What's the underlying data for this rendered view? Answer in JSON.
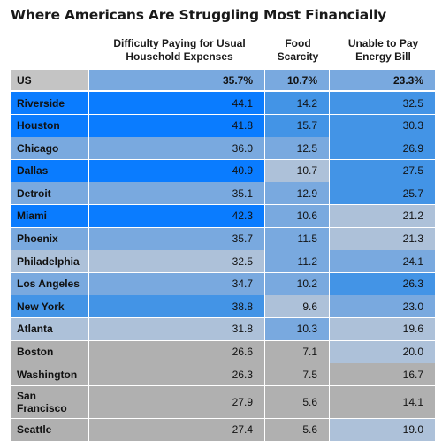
{
  "title": "Where Americans Are Struggling Most Financially",
  "colors": {
    "dark": "#0a7cff",
    "medium": "#4394e6",
    "light": "#79a9df",
    "pale": "#adc1d9",
    "grey": "#b0b0b0",
    "us_label": "#c4c4c4"
  },
  "chart_data": {
    "type": "table",
    "title": "Where Americans Are Struggling Most Financially",
    "columns": [
      "Difficulty Paying for Usual Household Expenses",
      "Food Scarcity",
      "Unable to Pay Energy Bill"
    ],
    "column_lines": [
      [
        "Difficulty Paying for Usual",
        "Household Expenses"
      ],
      [
        "Food",
        "Scarcity"
      ],
      [
        "Unable to Pay",
        "Energy Bill"
      ]
    ],
    "rows": [
      {
        "name": "US",
        "lines": [
          "US"
        ],
        "values": [
          "35.7%",
          "10.7%",
          "23.3%"
        ],
        "shades": [
          "light",
          "light",
          "light"
        ]
      },
      {
        "name": "Riverside",
        "lines": [
          "Riverside"
        ],
        "values": [
          "44.1",
          "14.2",
          "32.5"
        ],
        "shades": [
          "dark",
          "medium",
          "medium"
        ]
      },
      {
        "name": "Houston",
        "lines": [
          "Houston"
        ],
        "values": [
          "41.8",
          "15.7",
          "30.3"
        ],
        "shades": [
          "dark",
          "medium",
          "medium"
        ]
      },
      {
        "name": "Chicago",
        "lines": [
          "Chicago"
        ],
        "values": [
          "36.0",
          "12.5",
          "26.9"
        ],
        "shades": [
          "light",
          "light",
          "medium"
        ]
      },
      {
        "name": "Dallas",
        "lines": [
          "Dallas"
        ],
        "values": [
          "40.9",
          "10.7",
          "27.5"
        ],
        "shades": [
          "dark",
          "pale",
          "medium"
        ]
      },
      {
        "name": "Detroit",
        "lines": [
          "Detroit"
        ],
        "values": [
          "35.1",
          "12.9",
          "25.7"
        ],
        "shades": [
          "light",
          "light",
          "medium"
        ]
      },
      {
        "name": "Miami",
        "lines": [
          "Miami"
        ],
        "values": [
          "42.3",
          "10.6",
          "21.2"
        ],
        "shades": [
          "dark",
          "light",
          "pale"
        ]
      },
      {
        "name": "Phoenix",
        "lines": [
          "Phoenix"
        ],
        "values": [
          "35.7",
          "11.5",
          "21.3"
        ],
        "shades": [
          "light",
          "light",
          "pale"
        ]
      },
      {
        "name": "Philadelphia",
        "lines": [
          "Philadelphia"
        ],
        "values": [
          "32.5",
          "11.2",
          "24.1"
        ],
        "shades": [
          "pale",
          "light",
          "light"
        ]
      },
      {
        "name": "Los Angeles",
        "lines": [
          "Los Angeles"
        ],
        "values": [
          "34.7",
          "10.2",
          "26.3"
        ],
        "shades": [
          "light",
          "light",
          "medium"
        ]
      },
      {
        "name": "New York",
        "lines": [
          "New York"
        ],
        "values": [
          "38.8",
          "9.6",
          "23.0"
        ],
        "shades": [
          "medium",
          "pale",
          "light"
        ]
      },
      {
        "name": "Atlanta",
        "lines": [
          "Atlanta"
        ],
        "values": [
          "31.8",
          "10.3",
          "19.6"
        ],
        "shades": [
          "pale",
          "light",
          "pale"
        ]
      },
      {
        "name": "Boston",
        "lines": [
          "Boston"
        ],
        "values": [
          "26.6",
          "7.1",
          "20.0"
        ],
        "shades": [
          "grey",
          "grey",
          "pale"
        ]
      },
      {
        "name": "Washington",
        "lines": [
          "Washington"
        ],
        "values": [
          "26.3",
          "7.5",
          "16.7"
        ],
        "shades": [
          "grey",
          "grey",
          "grey"
        ]
      },
      {
        "name": "San Francisco",
        "lines": [
          "San",
          "Francisco"
        ],
        "values": [
          "27.9",
          "5.6",
          "14.1"
        ],
        "shades": [
          "grey",
          "grey",
          "grey"
        ]
      },
      {
        "name": "Seattle",
        "lines": [
          "Seattle"
        ],
        "values": [
          "27.4",
          "5.6",
          "19.0"
        ],
        "shades": [
          "grey",
          "grey",
          "pale"
        ]
      }
    ]
  }
}
